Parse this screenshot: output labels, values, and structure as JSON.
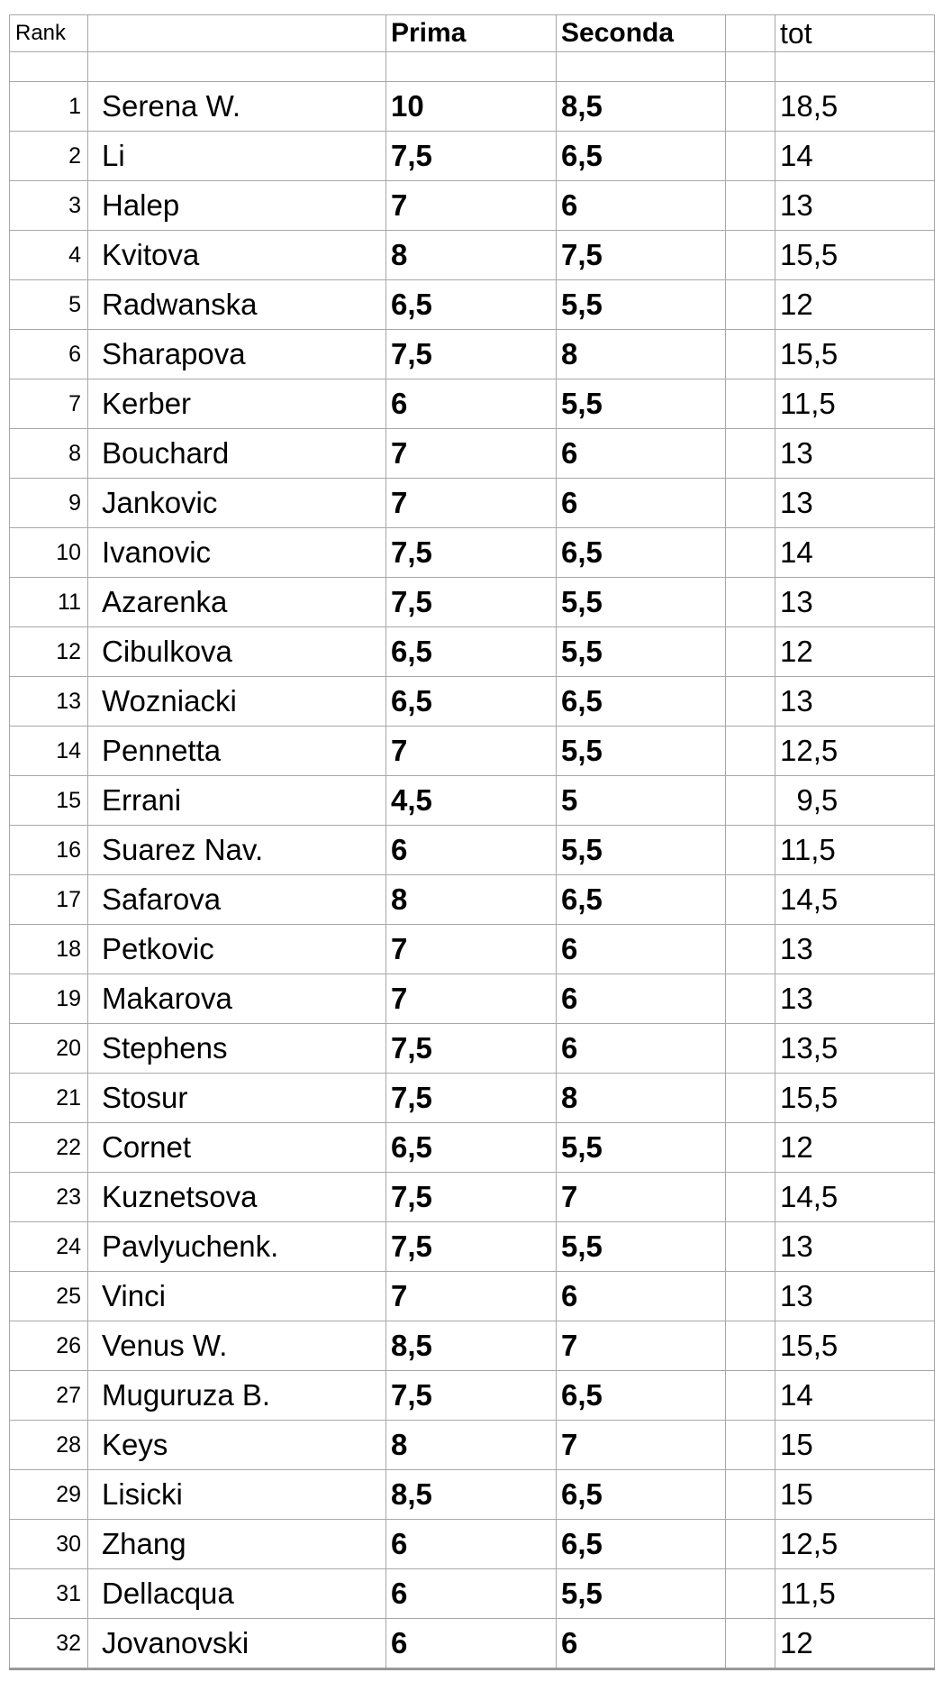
{
  "headers": {
    "rank": "Rank",
    "name": "",
    "prima": "Prima",
    "seconda": "Seconda",
    "tot": "tot"
  },
  "rows": [
    {
      "rank": "1",
      "name": "Serena W.",
      "prima": "10",
      "seconda": "8,5",
      "tot": "18,5"
    },
    {
      "rank": "2",
      "name": "Li",
      "prima": "7,5",
      "seconda": "6,5",
      "tot": "14"
    },
    {
      "rank": "3",
      "name": "Halep",
      "prima": "7",
      "seconda": "6",
      "tot": "13"
    },
    {
      "rank": "4",
      "name": "Kvitova",
      "prima": "8",
      "seconda": "7,5",
      "tot": "15,5"
    },
    {
      "rank": "5",
      "name": "Radwanska",
      "prima": "6,5",
      "seconda": "5,5",
      "tot": "12"
    },
    {
      "rank": "6",
      "name": "Sharapova",
      "prima": "7,5",
      "seconda": "8",
      "tot": "15,5"
    },
    {
      "rank": "7",
      "name": "Kerber",
      "prima": "6",
      "seconda": "5,5",
      "tot": "11,5"
    },
    {
      "rank": "8",
      "name": "Bouchard",
      "prima": "7",
      "seconda": "6",
      "tot": "13"
    },
    {
      "rank": "9",
      "name": "Jankovic",
      "prima": "7",
      "seconda": "6",
      "tot": "13"
    },
    {
      "rank": "10",
      "name": "Ivanovic",
      "prima": "7,5",
      "seconda": "6,5",
      "tot": "14"
    },
    {
      "rank": "11",
      "name": "Azarenka",
      "prima": "7,5",
      "seconda": "5,5",
      "tot": "13"
    },
    {
      "rank": "12",
      "name": "Cibulkova",
      "prima": "6,5",
      "seconda": "5,5",
      "tot": "12"
    },
    {
      "rank": "13",
      "name": "Wozniacki",
      "prima": "6,5",
      "seconda": "6,5",
      "tot": "13"
    },
    {
      "rank": "14",
      "name": "Pennetta",
      "prima": "7",
      "seconda": "5,5",
      "tot": "12,5"
    },
    {
      "rank": "15",
      "name": "Errani",
      "prima": "4,5",
      "seconda": "5",
      "tot": "  9,5"
    },
    {
      "rank": "16",
      "name": "Suarez Nav.",
      "prima": "6",
      "seconda": "5,5",
      "tot": "11,5"
    },
    {
      "rank": "17",
      "name": "Safarova",
      "prima": "8",
      "seconda": "6,5",
      "tot": "14,5"
    },
    {
      "rank": "18",
      "name": "Petkovic",
      "prima": "7",
      "seconda": "6",
      "tot": "13"
    },
    {
      "rank": "19",
      "name": "Makarova",
      "prima": "7",
      "seconda": "6",
      "tot": "13"
    },
    {
      "rank": "20",
      "name": "Stephens",
      "prima": "7,5",
      "seconda": "6",
      "tot": "13,5"
    },
    {
      "rank": "21",
      "name": "Stosur",
      "prima": "7,5",
      "seconda": "8",
      "tot": "15,5"
    },
    {
      "rank": "22",
      "name": "Cornet",
      "prima": "6,5",
      "seconda": "5,5",
      "tot": "12"
    },
    {
      "rank": "23",
      "name": "Kuznetsova",
      "prima": "7,5",
      "seconda": "7",
      "tot": "14,5"
    },
    {
      "rank": "24",
      "name": "Pavlyuchenk.",
      "prima": "7,5",
      "seconda": "5,5",
      "tot": "13"
    },
    {
      "rank": "25",
      "name": "Vinci",
      "prima": "7",
      "seconda": "6",
      "tot": "13"
    },
    {
      "rank": "26",
      "name": "Venus W.",
      "prima": "8,5",
      "seconda": "7",
      "tot": "15,5"
    },
    {
      "rank": "27",
      "name": "Muguruza B.",
      "prima": "7,5",
      "seconda": "6,5",
      "tot": "14"
    },
    {
      "rank": "28",
      "name": "Keys",
      "prima": "8",
      "seconda": "7",
      "tot": "15"
    },
    {
      "rank": "29",
      "name": "Lisicki",
      "prima": "8,5",
      "seconda": "6,5",
      "tot": "15"
    },
    {
      "rank": "30",
      "name": "Zhang",
      "prima": "6",
      "seconda": "6,5",
      "tot": "12,5"
    },
    {
      "rank": "31",
      "name": "Dellacqua",
      "prima": "6",
      "seconda": "5,5",
      "tot": "11,5"
    },
    {
      "rank": "32",
      "name": "Jovanovski",
      "prima": "6",
      "seconda": "6",
      "tot": "12"
    }
  ]
}
